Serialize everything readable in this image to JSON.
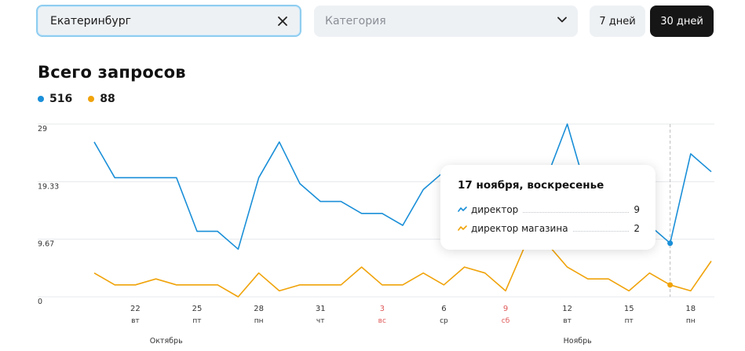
{
  "filters": {
    "city_value": "Екатеринбург",
    "category_placeholder": "Категория",
    "period_7": "7 дней",
    "period_30": "30 дней"
  },
  "title": "Всего запросов",
  "legend": [
    {
      "value": "516",
      "color": "#1a8fd8"
    },
    {
      "value": "88",
      "color": "#f0a30a"
    }
  ],
  "tooltip": {
    "title": "17 ноября, воскресенье",
    "rows": [
      {
        "label": "директор",
        "value": "9",
        "color": "#1a8fd8"
      },
      {
        "label": "директор магазина",
        "value": "2",
        "color": "#f0a30a"
      }
    ]
  },
  "chart_data": {
    "type": "line",
    "y_ticks": [
      "29",
      "19.33",
      "9.67",
      "0"
    ],
    "ylim": [
      0,
      29
    ],
    "grid": true,
    "x": [
      {
        "day": "",
        "dow": ""
      },
      {
        "day": "",
        "dow": ""
      },
      {
        "day": "22",
        "dow": "вт"
      },
      {
        "day": "",
        "dow": ""
      },
      {
        "day": "",
        "dow": ""
      },
      {
        "day": "25",
        "dow": "пт"
      },
      {
        "day": "",
        "dow": ""
      },
      {
        "day": "",
        "dow": ""
      },
      {
        "day": "28",
        "dow": "пн"
      },
      {
        "day": "",
        "dow": ""
      },
      {
        "day": "",
        "dow": ""
      },
      {
        "day": "31",
        "dow": "чт"
      },
      {
        "day": "",
        "dow": ""
      },
      {
        "day": "",
        "dow": ""
      },
      {
        "day": "3",
        "dow": "вс",
        "weekend": true
      },
      {
        "day": "",
        "dow": ""
      },
      {
        "day": "",
        "dow": ""
      },
      {
        "day": "6",
        "dow": "ср"
      },
      {
        "day": "",
        "dow": ""
      },
      {
        "day": "",
        "dow": ""
      },
      {
        "day": "9",
        "dow": "сб",
        "weekend": true
      },
      {
        "day": "",
        "dow": ""
      },
      {
        "day": "",
        "dow": ""
      },
      {
        "day": "12",
        "dow": "вт"
      },
      {
        "day": "",
        "dow": ""
      },
      {
        "day": "",
        "dow": ""
      },
      {
        "day": "15",
        "dow": "пт"
      },
      {
        "day": "",
        "dow": ""
      },
      {
        "day": "17",
        "dow": ""
      },
      {
        "day": "18",
        "dow": "пн"
      },
      {
        "day": "",
        "dow": ""
      }
    ],
    "months": [
      {
        "label": "Октябрь",
        "at_index": 3.5
      },
      {
        "label": "Ноябрь",
        "at_index": 23.5
      }
    ],
    "hover_index": 28,
    "series": [
      {
        "color": "#1a8fd8",
        "values": [
          26,
          20,
          20,
          20,
          20,
          11,
          11,
          8,
          20,
          26,
          19,
          16,
          16,
          14,
          14,
          12,
          18,
          21,
          17,
          17,
          17,
          16,
          20,
          29,
          17,
          16,
          14,
          12,
          9,
          24,
          21
        ]
      },
      {
        "color": "#f0a30a",
        "values": [
          4,
          2,
          2,
          3,
          2,
          2,
          2,
          0,
          4,
          1,
          2,
          2,
          2,
          5,
          2,
          2,
          4,
          2,
          5,
          4,
          1,
          9,
          9,
          5,
          3,
          3,
          1,
          4,
          2,
          1,
          6
        ]
      }
    ]
  }
}
